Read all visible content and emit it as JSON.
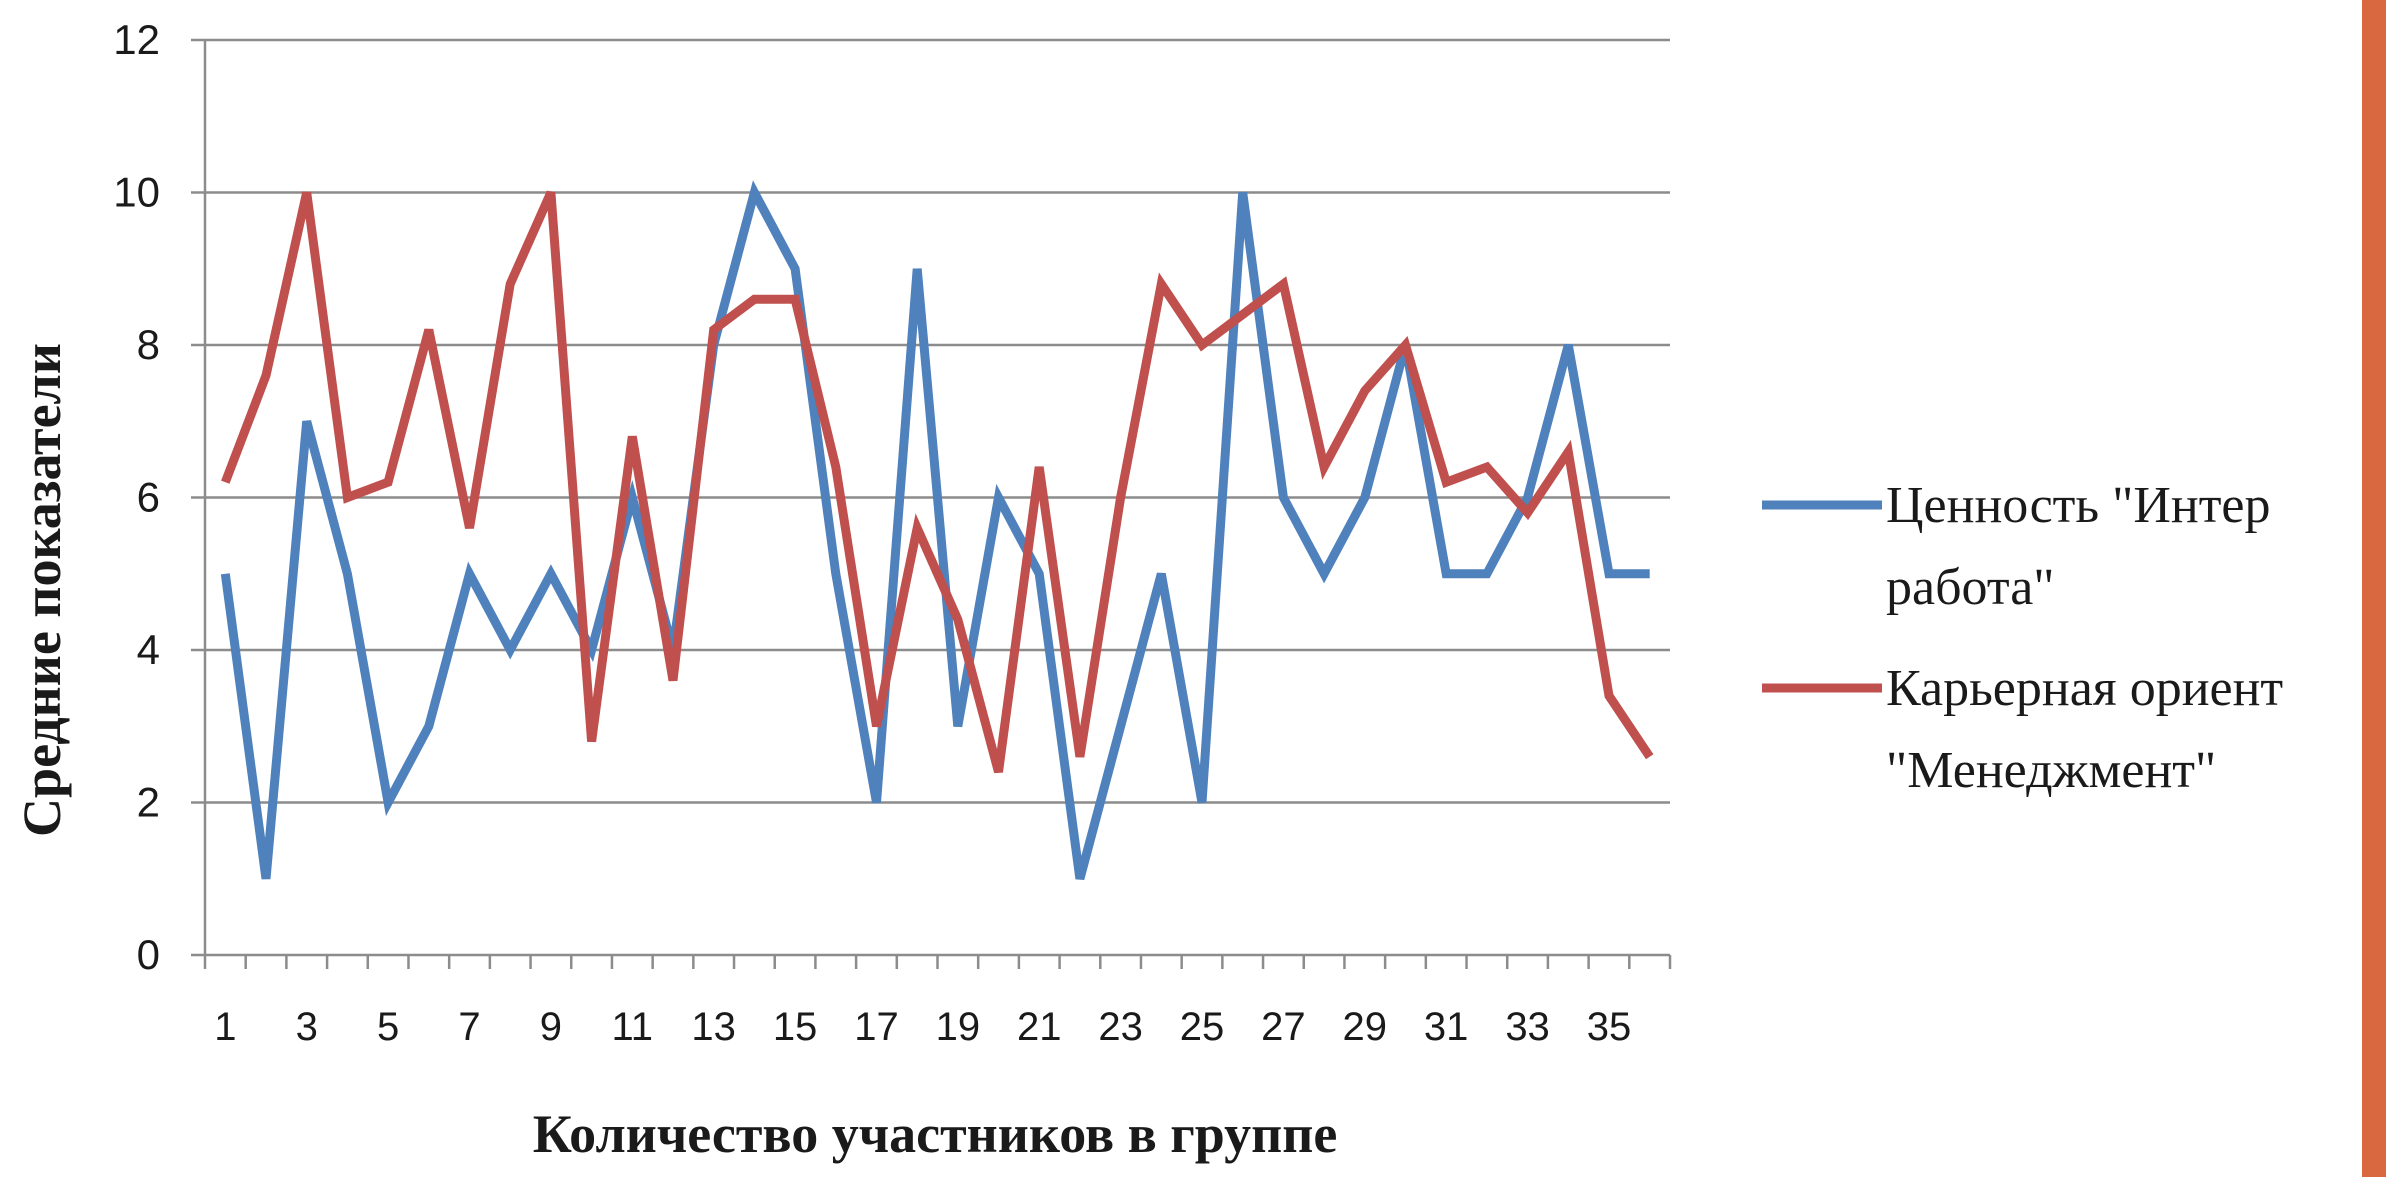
{
  "chart_data": {
    "type": "line",
    "xlabel": "Количество участников в группе",
    "ylabel": "Средние показатели",
    "ylim": [
      0,
      12
    ],
    "yticks": [
      0,
      2,
      4,
      6,
      8,
      10,
      12
    ],
    "xtick_labels": [
      "1",
      "3",
      "5",
      "7",
      "9",
      "11",
      "13",
      "15",
      "17",
      "19",
      "21",
      "23",
      "25",
      "27",
      "29",
      "31",
      "33",
      "35"
    ],
    "x": [
      1,
      2,
      3,
      4,
      5,
      6,
      7,
      8,
      9,
      10,
      11,
      12,
      13,
      14,
      15,
      16,
      17,
      18,
      19,
      20,
      21,
      22,
      23,
      24,
      25,
      26,
      27,
      28,
      29,
      30,
      31,
      32,
      33,
      34,
      35,
      36
    ],
    "grid": "horizontal",
    "legend_position": "right",
    "series": [
      {
        "name_line1": "Ценность \"Интер",
        "name_line2": "работа\"",
        "color": "#4f81bd",
        "values": [
          5,
          1,
          7,
          5,
          2,
          3,
          5,
          4,
          5,
          4,
          6,
          4,
          8,
          10,
          9,
          5,
          2,
          9,
          3,
          6,
          5,
          1,
          3,
          5,
          2,
          10,
          6,
          5,
          6,
          8,
          5,
          5,
          6,
          8,
          5,
          5
        ]
      },
      {
        "name_line1": "Карьерная ориент",
        "name_line2": "\"Менеджмент\"",
        "color": "#c0504d",
        "values": [
          6.2,
          7.6,
          10,
          6,
          6.2,
          8.2,
          5.6,
          8.8,
          10,
          2.8,
          6.8,
          3.6,
          8.2,
          8.6,
          8.6,
          6.4,
          3,
          5.6,
          4.4,
          2.4,
          6.4,
          2.6,
          6,
          8.8,
          8,
          8.4,
          8.8,
          6.4,
          7.4,
          8,
          6.2,
          6.4,
          5.8,
          6.6,
          3.4,
          2.6
        ]
      }
    ]
  }
}
